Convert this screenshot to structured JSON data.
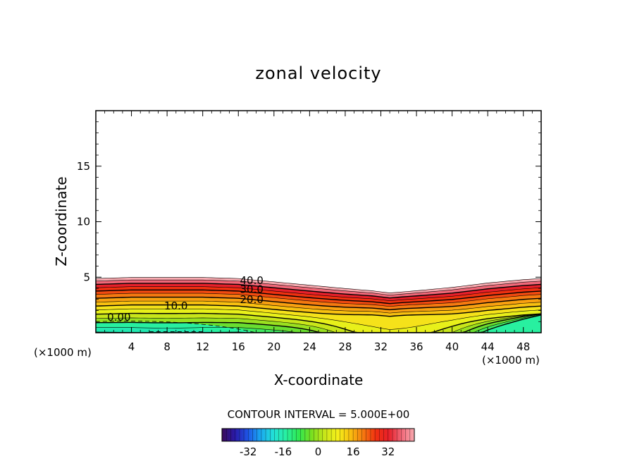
{
  "chart_data": {
    "type": "heatmap",
    "subtype": "filled-contour",
    "title": "zonal velocity",
    "xlabel": "X-coordinate",
    "ylabel": "Z-coordinate",
    "x_unit_left": "(×1000 m)",
    "x_unit_right": "(×1000 m)",
    "xlim": [
      0,
      50
    ],
    "ylim": [
      0,
      20
    ],
    "x_ticks": [
      "4",
      "8",
      "12",
      "16",
      "20",
      "24",
      "28",
      "32",
      "36",
      "40",
      "44",
      "48"
    ],
    "y_ticks": [
      "5",
      "10",
      "15"
    ],
    "x_tick_values": [
      4,
      8,
      12,
      16,
      20,
      24,
      28,
      32,
      36,
      40,
      44,
      48
    ],
    "y_tick_values": [
      5,
      10,
      15
    ],
    "top_boundary": {
      "x": [
        0,
        4,
        8,
        12,
        16,
        20,
        24,
        28,
        31,
        33,
        36,
        40,
        44,
        48,
        50
      ],
      "z": [
        4.9,
        5.0,
        5.0,
        5.0,
        4.9,
        4.6,
        4.3,
        4.0,
        3.8,
        3.6,
        3.8,
        4.1,
        4.5,
        4.8,
        4.9
      ]
    },
    "contour_labels": [
      {
        "text": "40.0",
        "x": 17.5,
        "z": 4.7
      },
      {
        "text": "30.0",
        "x": 17.5,
        "z": 3.9
      },
      {
        "text": "20.0",
        "x": 17.5,
        "z": 3.0
      },
      {
        "text": "10.0",
        "x": 9.0,
        "z": 2.4
      },
      {
        "text": "0.00",
        "x": 2.6,
        "z": 1.4
      }
    ],
    "contour_interval_text": "CONTOUR INTERVAL =  5.000E+00",
    "colorbar": {
      "min": -44,
      "max": 44,
      "tick_labels": [
        "-32",
        "-16",
        "0",
        "16",
        "32"
      ],
      "tick_values": [
        -32,
        -16,
        0,
        16,
        32
      ],
      "colormap": [
        "#3b0a5a",
        "#2a1aa8",
        "#1e54e6",
        "#1aa8f0",
        "#22e0d8",
        "#28f0a0",
        "#30e850",
        "#7ae020",
        "#c8e61a",
        "#f5f01a",
        "#f8c010",
        "#f67a10",
        "#f03010",
        "#e8202a",
        "#f06878",
        "#f8aab0"
      ]
    },
    "grid": false
  }
}
